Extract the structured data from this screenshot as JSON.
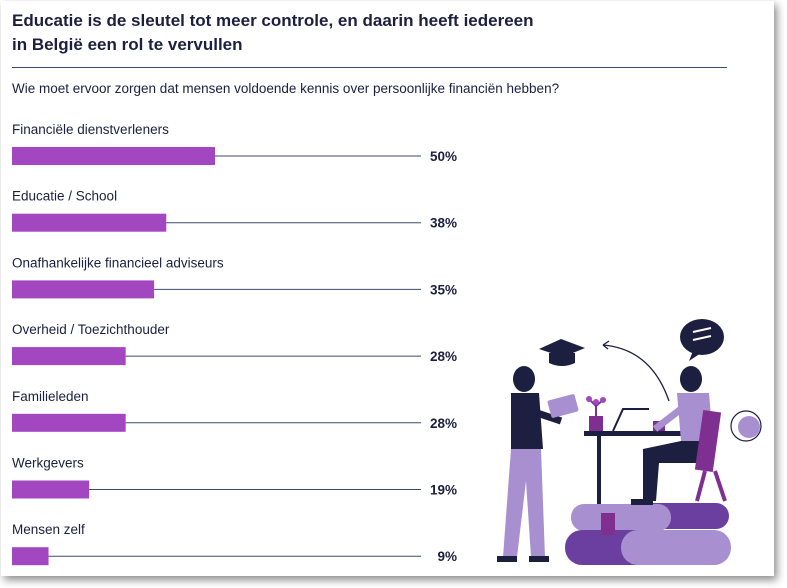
{
  "header": {
    "title_line1": "Educatie is de sleutel tot meer controle, en daarin heeft iedereen",
    "title_line2": "in België een rol te vervullen",
    "subtitle": "Wie moet ervoor zorgen dat mensen voldoende kennis over persoonlijke financiën hebben?"
  },
  "colors": {
    "bar": "#a347c0",
    "text": "#1c1f3f",
    "line": "#3d4a6b"
  },
  "chart_data": {
    "type": "bar",
    "orientation": "horizontal",
    "title": "Educatie is de sleutel tot meer controle, en daarin heeft iedereen in België een rol te vervullen",
    "subtitle": "Wie moet ervoor zorgen dat mensen voldoende kennis over persoonlijke financiën hebben?",
    "categories": [
      "Financiële dienstverleners",
      "Educatie / School",
      "Onafhankelijke financieel adviseurs",
      "Overheid / Toezichthouder",
      "Familieleden",
      "Werkgevers",
      "Mensen zelf"
    ],
    "values": [
      50,
      38,
      35,
      28,
      28,
      19,
      9
    ],
    "value_labels": [
      "50%",
      "38%",
      "35%",
      "28%",
      "28%",
      "19%",
      "9%"
    ],
    "unit": "%",
    "xlim": [
      0,
      100
    ]
  }
}
